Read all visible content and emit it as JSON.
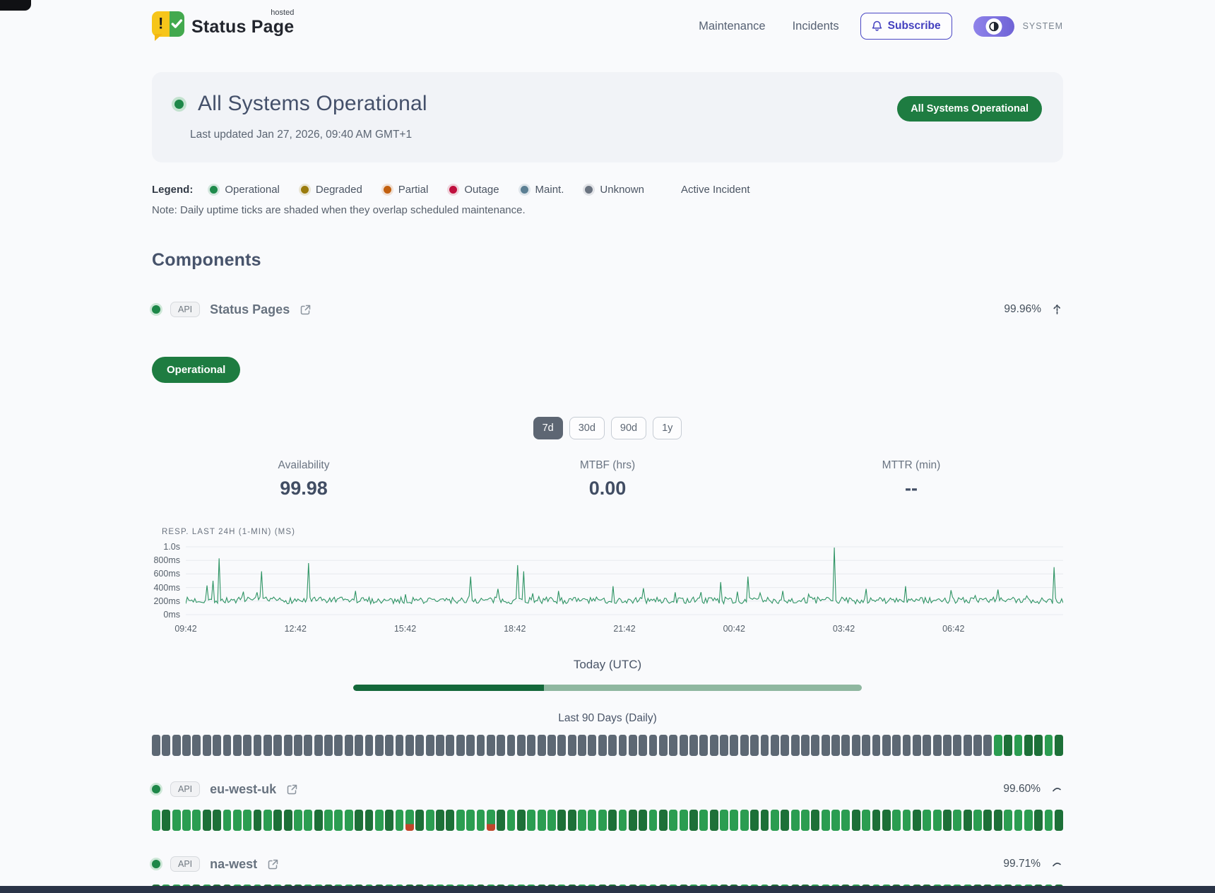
{
  "header": {
    "logo": {
      "title": "Status Page",
      "superscript": "hosted"
    },
    "nav": [
      {
        "label": "Maintenance"
      },
      {
        "label": "Incidents"
      }
    ],
    "subscribe_label": "Subscribe",
    "theme_label": "SYSTEM"
  },
  "hero": {
    "title": "All Systems Operational",
    "last_updated": "Last updated Jan 27, 2026, 09:40 AM GMT+1",
    "badge": "All Systems Operational"
  },
  "legend": {
    "label": "Legend:",
    "items": [
      {
        "label": "Operational",
        "color": "#1f8b4c"
      },
      {
        "label": "Degraded",
        "color": "#9a7b0c"
      },
      {
        "label": "Partial",
        "color": "#c2600f"
      },
      {
        "label": "Outage",
        "color": "#bf0f3d"
      },
      {
        "label": "Maint.",
        "color": "#5b7f93"
      },
      {
        "label": "Unknown",
        "color": "#6a7380"
      }
    ],
    "active_incident_label": "Active Incident",
    "note": "Note: Daily uptime ticks are shaded when they overlap scheduled maintenance."
  },
  "components_title": "Components",
  "expanded_component": {
    "badge": "API",
    "name": "Status Pages",
    "uptime": "99.96%",
    "status_label": "Operational",
    "ranges": [
      "7d",
      "30d",
      "90d",
      "1y"
    ],
    "active_range": "7d",
    "stats": [
      {
        "label": "Availability",
        "value": "99.98"
      },
      {
        "label": "MTBF (hrs)",
        "value": "0.00"
      },
      {
        "label": "MTTR (min)",
        "value": "--"
      }
    ],
    "chart": {
      "type": "line",
      "label": "RESP. LAST 24H (1-MIN) (MS)",
      "color": "#2e9464",
      "ylim": [
        0,
        1000
      ],
      "y_ticks": [
        {
          "v": 1000,
          "label": "1.0s"
        },
        {
          "v": 800,
          "label": "800ms"
        },
        {
          "v": 600,
          "label": "600ms"
        },
        {
          "v": 400,
          "label": "400ms"
        },
        {
          "v": 200,
          "label": "200ms"
        },
        {
          "v": 0,
          "label": "0ms"
        }
      ],
      "x_ticks": [
        "09:42",
        "12:42",
        "15:42",
        "18:42",
        "21:42",
        "00:42",
        "03:42",
        "06:42"
      ],
      "seed": 7,
      "baseline_ms": [
        160,
        260
      ],
      "spikes": [
        [
          0.024,
          430
        ],
        [
          0.031,
          500
        ],
        [
          0.038,
          830
        ],
        [
          0.086,
          640
        ],
        [
          0.14,
          760
        ],
        [
          0.193,
          350
        ],
        [
          0.25,
          300
        ],
        [
          0.325,
          560
        ],
        [
          0.355,
          380
        ],
        [
          0.378,
          730
        ],
        [
          0.385,
          640
        ],
        [
          0.425,
          350
        ],
        [
          0.487,
          420
        ],
        [
          0.522,
          390
        ],
        [
          0.557,
          330
        ],
        [
          0.61,
          480
        ],
        [
          0.641,
          560
        ],
        [
          0.68,
          350
        ],
        [
          0.739,
          990
        ],
        [
          0.776,
          380
        ],
        [
          0.82,
          420
        ],
        [
          0.873,
          360
        ],
        [
          0.925,
          370
        ],
        [
          0.99,
          700
        ]
      ]
    },
    "today_label": "Today (UTC)",
    "today_progress": 0.375,
    "history_label": "Last 90 Days (Daily)",
    "ticks": "xxxxxxxxxxxxxxxxxxxxxxxxxxxxxxxxxxxxxxxxxxxxxxxxxxxxxxxxxxxxxxxxxxxxxxxxxxxxxxxxxxxgGgGGgG"
  },
  "components": [
    {
      "badge": "API",
      "name": "eu-west-uk",
      "uptime": "99.60%",
      "ticks": "gGgggGGgggGgGGggGgggGGgGgrGgGGgggrGgGgggGGgggGgGGgGggGgGgggGGgGggGgggGgGGggGggGgGgGGgggGgG"
    },
    {
      "badge": "API",
      "name": "na-west",
      "uptime": "99.71%",
      "ticks": "GgggGgGGgggGgGGggGggGgGggGGggggoGgGgggGGgGggGGgGggGgGgggGGgggGgGGgggGgGggGgGGggggGGgGggGgG"
    }
  ]
}
